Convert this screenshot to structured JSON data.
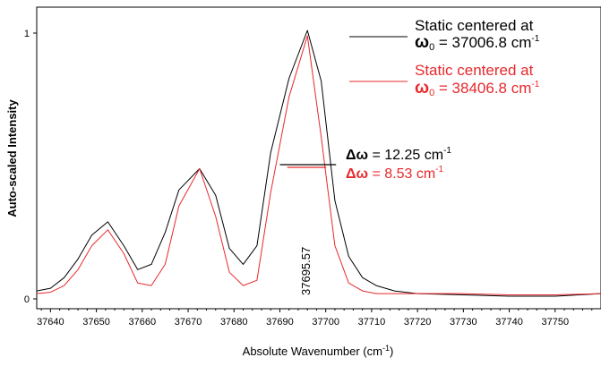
{
  "chart_data": {
    "type": "line",
    "xlabel": "Absolute Wavenumber (cm",
    "xlabel_sup": "-1",
    "xlabel_tail": ")",
    "ylabel": "Auto-scaled Intensity",
    "xlim": [
      37637,
      37760
    ],
    "ylim": [
      -0.02,
      1.1
    ],
    "x_ticks": [
      37640,
      37650,
      37660,
      37670,
      37680,
      37690,
      37700,
      37710,
      37720,
      37730,
      37740,
      37750
    ],
    "y_ticks": [
      0,
      1
    ],
    "grid": false,
    "legend_position": "top-right",
    "series": [
      {
        "color": "#000000",
        "legend_line1": "Static centered at",
        "legend_line2_prefix": "ω",
        "legend_line2_sub": "0",
        "legend_line2_value": " = 37006.8 cm",
        "legend_line2_sup": "-1",
        "x": [
          37637,
          37640,
          37643,
          37646,
          37649,
          37652.5,
          37656,
          37659,
          37662,
          37665,
          37668,
          37672.5,
          37676,
          37679,
          37682,
          37685,
          37688,
          37692,
          37696,
          37699,
          37702,
          37705,
          37708,
          37711,
          37715,
          37720,
          37730,
          37740,
          37750,
          37760
        ],
        "y": [
          0.03,
          0.04,
          0.08,
          0.15,
          0.24,
          0.29,
          0.2,
          0.11,
          0.13,
          0.25,
          0.41,
          0.49,
          0.39,
          0.19,
          0.13,
          0.2,
          0.55,
          0.83,
          1.01,
          0.82,
          0.37,
          0.16,
          0.08,
          0.05,
          0.03,
          0.02,
          0.015,
          0.01,
          0.01,
          0.02
        ]
      },
      {
        "color": "#e8282b",
        "legend_line1": "Static centered at",
        "legend_line2_prefix": "ω",
        "legend_line2_sub": "0",
        "legend_line2_value": " = 38406.8 cm",
        "legend_line2_sup": "-1",
        "x": [
          37637,
          37640,
          37643,
          37646,
          37649,
          37652.5,
          37656,
          37659,
          37662,
          37665,
          37668,
          37672.5,
          37676,
          37679,
          37682,
          37685,
          37688,
          37692,
          37696,
          37699,
          37702,
          37705,
          37708,
          37711,
          37715,
          37720,
          37730,
          37740,
          37750,
          37760
        ],
        "y": [
          0.02,
          0.025,
          0.05,
          0.11,
          0.2,
          0.26,
          0.17,
          0.06,
          0.05,
          0.13,
          0.35,
          0.49,
          0.31,
          0.1,
          0.05,
          0.07,
          0.4,
          0.76,
          0.99,
          0.61,
          0.2,
          0.06,
          0.03,
          0.02,
          0.02,
          0.02,
          0.02,
          0.015,
          0.015,
          0.02
        ]
      }
    ],
    "annotations": {
      "fwhm_black": {
        "prefix": "Δω",
        "value": " = 12.25 cm",
        "sup": "-1",
        "x_start": 37690,
        "x_end": 37702.25,
        "y": 0.505,
        "color": "#000000"
      },
      "fwhm_red": {
        "prefix": "Δω",
        "value": " = 8.53 cm",
        "sup": "-1",
        "x_start": 37691.6,
        "x_end": 37700.1,
        "y": 0.495,
        "color": "#e8282b"
      },
      "peak_label": {
        "text": "37695.57",
        "x": 37695.57
      }
    }
  }
}
